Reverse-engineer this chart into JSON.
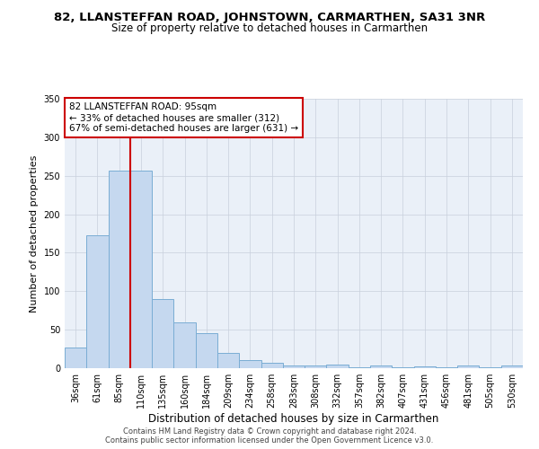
{
  "title": "82, LLANSTEFFAN ROAD, JOHNSTOWN, CARMARTHEN, SA31 3NR",
  "subtitle": "Size of property relative to detached houses in Carmarthen",
  "xlabel": "Distribution of detached houses by size in Carmarthen",
  "ylabel": "Number of detached properties",
  "footnote1": "Contains HM Land Registry data © Crown copyright and database right 2024.",
  "footnote2": "Contains public sector information licensed under the Open Government Licence v3.0.",
  "categories": [
    "36sqm",
    "61sqm",
    "85sqm",
    "110sqm",
    "135sqm",
    "160sqm",
    "184sqm",
    "209sqm",
    "234sqm",
    "258sqm",
    "283sqm",
    "308sqm",
    "332sqm",
    "357sqm",
    "382sqm",
    "407sqm",
    "431sqm",
    "456sqm",
    "481sqm",
    "505sqm",
    "530sqm"
  ],
  "values": [
    27,
    173,
    257,
    257,
    90,
    60,
    45,
    20,
    10,
    7,
    4,
    3,
    5,
    1,
    4,
    1,
    2,
    1,
    3,
    1,
    3
  ],
  "bar_color": "#c5d8ef",
  "bar_edge_color": "#7aadd4",
  "red_line_color": "#cc0000",
  "annotation_box_color": "#ffffff",
  "annotation_box_edge": "#cc0000",
  "property_line_label": "82 LLANSTEFFAN ROAD: 95sqm",
  "annotation_line1": "← 33% of detached houses are smaller (312)",
  "annotation_line2": "67% of semi-detached houses are larger (631) →",
  "ylim": [
    0,
    350
  ],
  "yticks": [
    0,
    50,
    100,
    150,
    200,
    250,
    300,
    350
  ],
  "bg_color": "#eaf0f8",
  "grid_color": "#c8d0dc",
  "title_fontsize": 9.5,
  "subtitle_fontsize": 8.5,
  "ylabel_fontsize": 8,
  "xlabel_fontsize": 8.5,
  "tick_fontsize": 7,
  "footnote_fontsize": 6
}
